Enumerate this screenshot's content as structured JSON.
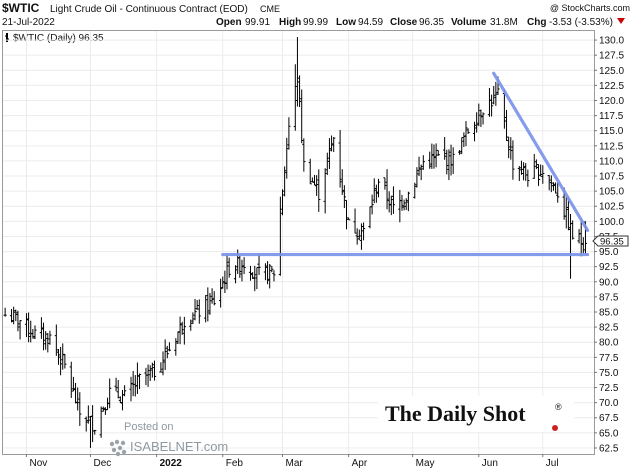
{
  "header": {
    "symbol": "$WTIC",
    "description": "Light Crude Oil - Continuous Contract (EOD)",
    "exchange": "CME",
    "date": "21-Jul-2022",
    "copyright": "@ StockCharts.com",
    "open_label": "Open",
    "open": "99.91",
    "high_label": "High",
    "high": "99.99",
    "low_label": "Low",
    "low": "94.59",
    "close_label": "Close",
    "close": "96.35",
    "volume_label": "Volume",
    "volume": "31.8M",
    "chg_label": "Chg",
    "chg": "-3.53 (-3.53%)",
    "chg_color": "#cc0000"
  },
  "legend": {
    "label": "$WTIC (Daily) 96.35"
  },
  "price_tag": "96.35",
  "watermark": {
    "brand": "The Daily Shot",
    "reg": "®",
    "posted": "Posted on",
    "site": "ISABELNET.com"
  },
  "chart_data": {
    "type": "ohlc",
    "ylim": [
      61.5,
      131.5
    ],
    "y_ticks": [
      "130.0",
      "127.5",
      "125.0",
      "122.5",
      "120.0",
      "117.5",
      "115.0",
      "112.5",
      "110.0",
      "107.5",
      "105.0",
      "102.5",
      "100.0",
      "97.5",
      "95.0",
      "92.5",
      "90.0",
      "87.5",
      "85.0",
      "82.5",
      "80.0",
      "77.5",
      "75.0",
      "72.5",
      "70.0",
      "67.5",
      "65.0",
      "62.5"
    ],
    "x_labels": [
      "Nov",
      "Dec",
      "2022",
      "Feb",
      "Mar",
      "Apr",
      "May",
      "Jun",
      "Jul"
    ],
    "close_path": [
      [
        "2021-10-22",
        84.5
      ],
      [
        "2021-10-29",
        83.6
      ],
      [
        "2021-11-05",
        81.3
      ],
      [
        "2021-11-12",
        80.8
      ],
      [
        "2021-11-19",
        76.0
      ],
      [
        "2021-11-26",
        68.2
      ],
      [
        "2021-12-03",
        66.3
      ],
      [
        "2021-12-10",
        71.7
      ],
      [
        "2021-12-17",
        70.9
      ],
      [
        "2021-12-24",
        73.8
      ],
      [
        "2021-12-31",
        75.2
      ],
      [
        "2022-01-07",
        78.9
      ],
      [
        "2022-01-14",
        83.8
      ],
      [
        "2022-01-21",
        85.1
      ],
      [
        "2022-01-28",
        86.8
      ],
      [
        "2022-02-04",
        92.3
      ],
      [
        "2022-02-11",
        93.1
      ],
      [
        "2022-02-18",
        91.1
      ],
      [
        "2022-02-25",
        91.6
      ],
      [
        "2022-03-04",
        115.7
      ],
      [
        "2022-03-08",
        123.7
      ],
      [
        "2022-03-11",
        109.3
      ],
      [
        "2022-03-18",
        104.7
      ],
      [
        "2022-03-25",
        113.9
      ],
      [
        "2022-04-01",
        99.3
      ],
      [
        "2022-04-08",
        98.3
      ],
      [
        "2022-04-15",
        106.9
      ],
      [
        "2022-04-22",
        102.1
      ],
      [
        "2022-04-29",
        104.7
      ],
      [
        "2022-05-06",
        109.8
      ],
      [
        "2022-05-13",
        110.5
      ],
      [
        "2022-05-20",
        110.3
      ],
      [
        "2022-05-27",
        115.1
      ],
      [
        "2022-06-03",
        118.9
      ],
      [
        "2022-06-10",
        120.7
      ],
      [
        "2022-06-17",
        109.6
      ],
      [
        "2022-06-24",
        107.6
      ],
      [
        "2022-07-01",
        108.4
      ],
      [
        "2022-07-08",
        104.8
      ],
      [
        "2022-07-15",
        97.6
      ],
      [
        "2022-07-21",
        96.35
      ]
    ],
    "overlays": [
      {
        "kind": "support",
        "from": [
          "2022-02-01",
          94.5
        ],
        "to": [
          "2022-07-22",
          94.5
        ]
      },
      {
        "kind": "downtrend",
        "from": [
          "2022-06-08",
          124.5
        ],
        "to": [
          "2022-07-22",
          98.5
        ]
      }
    ],
    "colors": {
      "bars": "#000000",
      "support": "#7b93ea",
      "trend": "#7b93ea"
    }
  }
}
